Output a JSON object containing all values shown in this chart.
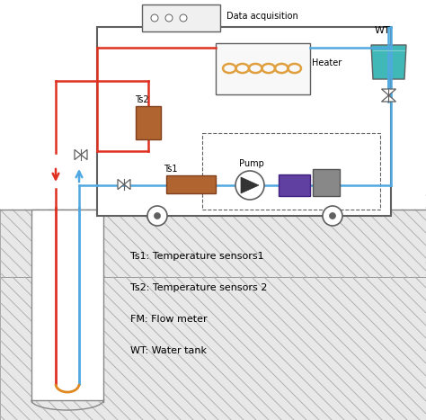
{
  "fig_width": 4.74,
  "fig_height": 4.67,
  "dpi": 100,
  "bg_color": "#ffffff",
  "legend_lines": [
    "Ts1: Temperature sensors1",
    "Ts2: Temperature sensors 2",
    "FM: Flow meter",
    "WT: Water tank"
  ],
  "red_color": "#e03020",
  "blue_color": "#50a8e0",
  "orange_color": "#e08820",
  "gray_color": "#909090",
  "dark_gray": "#606060",
  "light_gray": "#d8d8d8",
  "brown_color": "#b06530",
  "purple_color": "#6040a0",
  "teal_color": "#40b8b8",
  "heater_coil_color": "#e0a040",
  "hatch_color": "#b0b0b0"
}
